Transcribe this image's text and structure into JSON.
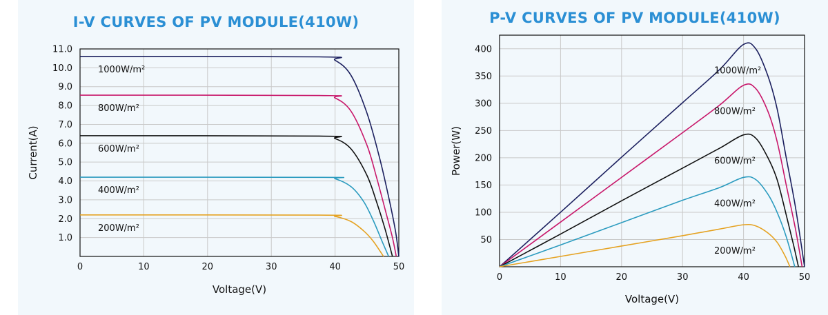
{
  "chart_data": [
    {
      "type": "line",
      "title": "I-V CURVES OF PV MODULE(410W)",
      "xlabel": "Voltage(V)",
      "ylabel": "Current(A)",
      "xlim": [
        0,
        50
      ],
      "ylim": [
        0,
        11
      ],
      "xticks": [
        "0",
        "10",
        "20",
        "30",
        "40",
        "50"
      ],
      "yticks": [
        "1.0",
        "2.0",
        "3.0",
        "4.0",
        "5.0",
        "6.0",
        "7.0",
        "8.0",
        "9.0",
        "10.0",
        "11.0"
      ],
      "grid": true,
      "series": [
        {
          "name": "1000W/m²",
          "color": "#1b1f5e",
          "isc": 10.6,
          "voc": 50.0,
          "points": [
            [
              0,
              10.6
            ],
            [
              37.5,
              10.58
            ],
            [
              40,
              10.4
            ],
            [
              42.5,
              9.6
            ],
            [
              45,
              7.6
            ],
            [
              47,
              5.2
            ],
            [
              48.5,
              3.0
            ],
            [
              49.5,
              1.3
            ],
            [
              50,
              0
            ]
          ]
        },
        {
          "name": "800W/m²",
          "color": "#c8176a",
          "isc": 8.55,
          "voc": 49.6,
          "points": [
            [
              0,
              8.55
            ],
            [
              37.5,
              8.53
            ],
            [
              40,
              8.4
            ],
            [
              42.5,
              7.7
            ],
            [
              45,
              5.9
            ],
            [
              46.5,
              4.2
            ],
            [
              48,
              2.3
            ],
            [
              49,
              1.0
            ],
            [
              49.6,
              0
            ]
          ]
        },
        {
          "name": "600W/m²",
          "color": "#111111",
          "isc": 6.4,
          "voc": 49.0,
          "points": [
            [
              0,
              6.4
            ],
            [
              37.5,
              6.38
            ],
            [
              40,
              6.25
            ],
            [
              42.5,
              5.7
            ],
            [
              45,
              4.3
            ],
            [
              46.5,
              2.9
            ],
            [
              47.8,
              1.5
            ],
            [
              49,
              0
            ]
          ]
        },
        {
          "name": "400W/m²",
          "color": "#2b9bbf",
          "isc": 4.2,
          "voc": 48.4,
          "points": [
            [
              0,
              4.2
            ],
            [
              38,
              4.19
            ],
            [
              40,
              4.12
            ],
            [
              42.5,
              3.7
            ],
            [
              44.5,
              2.9
            ],
            [
              46,
              1.9
            ],
            [
              47.5,
              0.7
            ],
            [
              48.4,
              0
            ]
          ]
        },
        {
          "name": "200W/m²",
          "color": "#e5a221",
          "isc": 2.2,
          "voc": 47.6,
          "points": [
            [
              0,
              2.2
            ],
            [
              37.5,
              2.19
            ],
            [
              40,
              2.12
            ],
            [
              42.5,
              1.85
            ],
            [
              44.5,
              1.35
            ],
            [
              46,
              0.8
            ],
            [
              47.6,
              0
            ]
          ]
        }
      ]
    },
    {
      "type": "line",
      "title": "P-V CURVES OF PV MODULE(410W)",
      "xlabel": "Voltage(V)",
      "ylabel": "Power(W)",
      "xlim": [
        0,
        50
      ],
      "ylim": [
        0,
        425
      ],
      "xticks": [
        "0",
        "10",
        "20",
        "30",
        "40",
        "50"
      ],
      "yticks": [
        "50",
        "100",
        "150",
        "200",
        "250",
        "300",
        "350",
        "400"
      ],
      "grid": true,
      "series": [
        {
          "name": "1000W/m²",
          "color": "#1b1f5e",
          "pmax": 408,
          "points": [
            [
              0,
              0
            ],
            [
              10,
              100
            ],
            [
              20,
              201
            ],
            [
              30,
              301
            ],
            [
              36,
              361
            ],
            [
              40,
              408
            ],
            [
              42,
              400
            ],
            [
              44,
              350
            ],
            [
              45.5,
              290
            ],
            [
              47,
              200
            ],
            [
              48.5,
              110
            ],
            [
              50,
              0
            ]
          ]
        },
        {
          "name": "800W/m²",
          "color": "#c8176a",
          "pmax": 333,
          "points": [
            [
              0,
              0
            ],
            [
              10,
              82
            ],
            [
              20,
              164
            ],
            [
              30,
              246
            ],
            [
              36,
              296
            ],
            [
              40,
              333
            ],
            [
              42,
              327
            ],
            [
              44,
              285
            ],
            [
              45.5,
              230
            ],
            [
              47,
              150
            ],
            [
              48.5,
              70
            ],
            [
              49.6,
              0
            ]
          ]
        },
        {
          "name": "600W/m²",
          "color": "#111111",
          "pmax": 242,
          "points": [
            [
              0,
              0
            ],
            [
              10,
              60
            ],
            [
              20,
              121
            ],
            [
              30,
              181
            ],
            [
              36,
              217
            ],
            [
              40,
              242
            ],
            [
              42,
              236
            ],
            [
              44,
              200
            ],
            [
              45.5,
              160
            ],
            [
              47,
              95
            ],
            [
              48.2,
              40
            ],
            [
              49,
              0
            ]
          ]
        },
        {
          "name": "400W/m²",
          "color": "#2b9bbf",
          "pmax": 164,
          "points": [
            [
              0,
              0
            ],
            [
              10,
              40
            ],
            [
              20,
              81
            ],
            [
              30,
              122
            ],
            [
              36,
              145
            ],
            [
              40,
              164
            ],
            [
              42,
              160
            ],
            [
              44,
              133
            ],
            [
              45.5,
              100
            ],
            [
              47,
              55
            ],
            [
              48.4,
              0
            ]
          ]
        },
        {
          "name": "200W/m²",
          "color": "#e5a221",
          "pmax": 77,
          "points": [
            [
              0,
              0
            ],
            [
              10,
              19
            ],
            [
              20,
              38
            ],
            [
              30,
              57
            ],
            [
              36,
              69
            ],
            [
              40,
              77
            ],
            [
              42,
              75
            ],
            [
              44,
              62
            ],
            [
              45.5,
              45
            ],
            [
              46.8,
              20
            ],
            [
              47.6,
              0
            ]
          ]
        }
      ]
    }
  ]
}
